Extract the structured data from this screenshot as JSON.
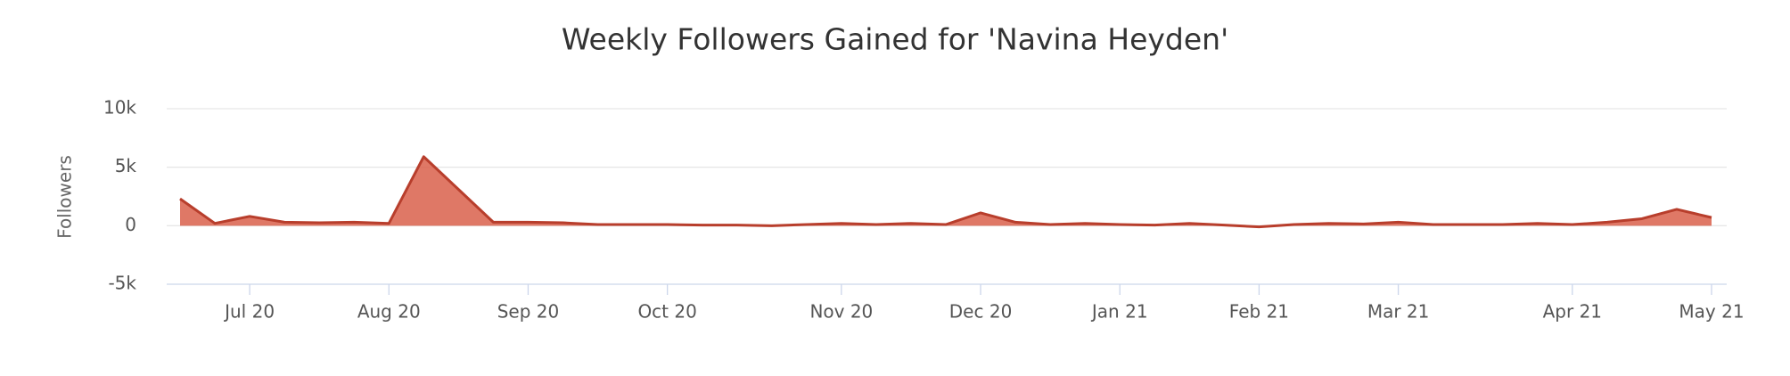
{
  "chart_data": {
    "type": "area",
    "title": "Weekly Followers Gained for 'Navina Heyden'",
    "y_label": "Followers",
    "categories": [
      null,
      null,
      "Jul 20",
      null,
      null,
      null,
      "Aug 20",
      null,
      null,
      null,
      "Sep 20",
      null,
      null,
      null,
      "Oct 20",
      null,
      null,
      null,
      null,
      "Nov 20",
      null,
      null,
      null,
      "Dec 20",
      null,
      null,
      null,
      "Jan 21",
      null,
      null,
      null,
      "Feb 21",
      null,
      null,
      null,
      "Mar 21",
      null,
      null,
      null,
      null,
      "Apr 21",
      null,
      null,
      null,
      "May 21"
    ],
    "values": [
      2300,
      200,
      800,
      300,
      250,
      300,
      200,
      5900,
      3100,
      300,
      300,
      250,
      100,
      100,
      100,
      50,
      50,
      0,
      100,
      200,
      100,
      200,
      100,
      1100,
      300,
      100,
      200,
      100,
      50,
      200,
      50,
      -100,
      100,
      200,
      150,
      300,
      100,
      100,
      100,
      200,
      100,
      300,
      600,
      1400,
      700
    ],
    "color": "#d9604b",
    "line_color": "#b83e2c",
    "ylim": [
      -5000,
      10000
    ],
    "yticks": [
      {
        "value": -5000,
        "label": "-5k"
      },
      0,
      {
        "value": 5000,
        "label": "5k"
      },
      {
        "value": 10000,
        "label": "10k"
      }
    ],
    "grid": true
  }
}
